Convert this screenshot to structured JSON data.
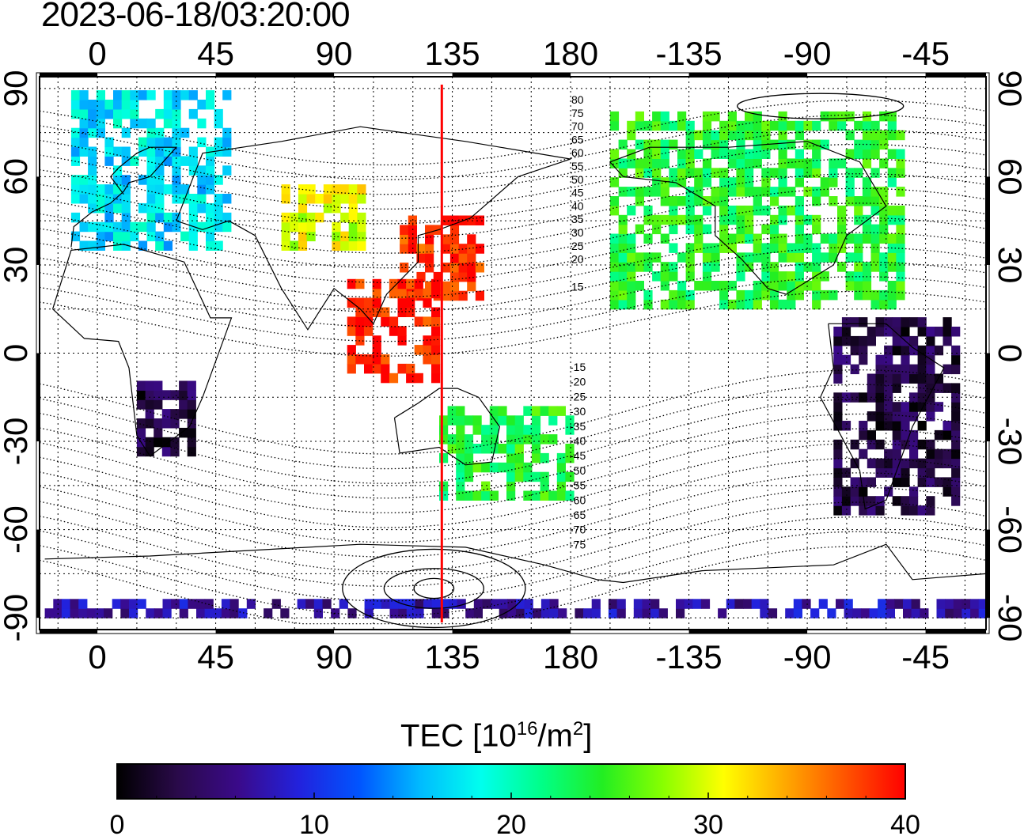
{
  "timestamp": "2023-06-18/03:20:00",
  "map": {
    "lon_ticks": [
      0,
      45,
      90,
      135,
      180,
      -135,
      -90,
      -45
    ],
    "lon_ticks_unwrapped": [
      0,
      45,
      90,
      135,
      180,
      225,
      270,
      315
    ],
    "lat_ticks": [
      90,
      60,
      30,
      0,
      -30,
      -60,
      -90
    ],
    "lon_range": [
      -22,
      338
    ],
    "lat_range": [
      -94,
      94
    ],
    "grid": "dotted",
    "meridian_line": {
      "lon": 131,
      "color": "#ff0000"
    },
    "contour_labels_north": [
      "80",
      "75",
      "70",
      "65",
      "60",
      "55",
      "50",
      "45",
      "40",
      "35",
      "30",
      "25",
      "20",
      "15"
    ],
    "contour_labels_south": [
      "-15",
      "-20",
      "-25",
      "-30",
      "-35",
      "-40",
      "-45",
      "-50",
      "-55",
      "-60",
      "-65",
      "-70",
      "-75"
    ]
  },
  "colorbar": {
    "title_main": "TEC  [10",
    "title_exp1": "16",
    "title_mid": "/m",
    "title_exp2": "2",
    "title_end": "]",
    "min": 0,
    "max": 40,
    "tick_labels": [
      "0",
      "10",
      "20",
      "30",
      "40"
    ],
    "colors": [
      "#000000",
      "#2a0a4a",
      "#3a0a8a",
      "#2222dd",
      "#0055ff",
      "#00bbff",
      "#00ffee",
      "#00ff88",
      "#22ee22",
      "#88ff00",
      "#ffff00",
      "#ffaa00",
      "#ff5500",
      "#ff0000"
    ]
  },
  "tec_regions": [
    {
      "name": "europe",
      "lon": [
        -10,
        50
      ],
      "lat": [
        35,
        88
      ],
      "tec": 17
    },
    {
      "name": "north-america",
      "lon": [
        -165,
        -55
      ],
      "lat": [
        15,
        80
      ],
      "tec": 24
    },
    {
      "name": "japan-china",
      "lon": [
        115,
        145
      ],
      "lat": [
        18,
        45
      ],
      "tec": 38
    },
    {
      "name": "southeast-asia",
      "lon": [
        95,
        130
      ],
      "lat": [
        -10,
        25
      ],
      "tec": 39
    },
    {
      "name": "south-america",
      "lon": [
        -80,
        -35
      ],
      "lat": [
        -55,
        10
      ],
      "tec": 3
    },
    {
      "name": "southern-africa",
      "lon": [
        15,
        35
      ],
      "lat": [
        -35,
        -10
      ],
      "tec": 3
    },
    {
      "name": "australia-nz",
      "lon": [
        130,
        180
      ],
      "lat": [
        -50,
        -20
      ],
      "tec": 24
    },
    {
      "name": "antarctica-strip",
      "lon": [
        -20,
        340
      ],
      "lat": [
        -90,
        -84
      ],
      "tec": 7
    },
    {
      "name": "central-asia",
      "lon": [
        70,
        100
      ],
      "lat": [
        35,
        55
      ],
      "tec": 30
    }
  ]
}
